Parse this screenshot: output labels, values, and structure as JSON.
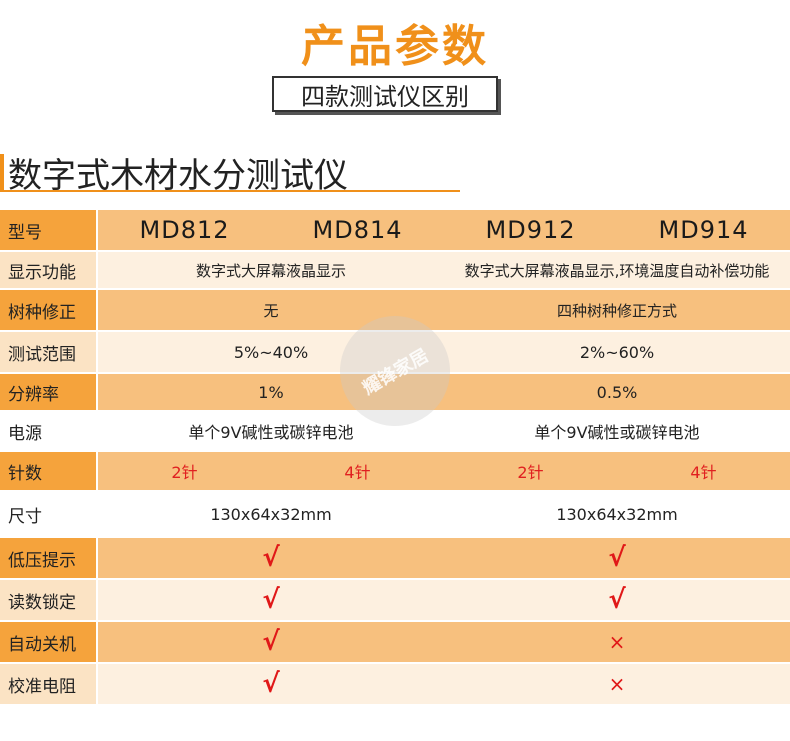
{
  "header": {
    "title": "产品参数",
    "subtitle": "四款测试仪区别",
    "section": "数字式木材水分测试仪"
  },
  "colors": {
    "accent": "#f0901a",
    "label_bg_dark": "#f5a33c",
    "body_bg_dark": "#f7c07e",
    "label_bg_light": "#fbe3c4",
    "body_bg_light": "#fdf0e0",
    "mark_red": "#e01818"
  },
  "table": {
    "model_label": "型号",
    "models": [
      "MD812",
      "MD814",
      "MD912",
      "MD914"
    ],
    "rows": [
      {
        "label": "显示功能",
        "left": "数字式大屏幕液晶显示",
        "right": "数字式大屏幕液晶显示,环境温度自动补偿功能"
      },
      {
        "label": "树种修正",
        "left": "无",
        "right": "四种树种修正方式"
      },
      {
        "label": "测试范围",
        "left": "5%~40%",
        "right": "2%~60%"
      },
      {
        "label": "分辨率",
        "left": "1%",
        "right": "0.5%"
      },
      {
        "label": "电源",
        "left": "单个9V碱性或碳锌电池",
        "right": "单个9V碱性或碳锌电池"
      },
      {
        "label": "针数",
        "pins": [
          "2针",
          "4针",
          "2针",
          "4针"
        ]
      },
      {
        "label": "尺寸",
        "left": "130x64x32mm",
        "right": "130x64x32mm"
      },
      {
        "label": "低压提示",
        "left": "√",
        "right": "√"
      },
      {
        "label": "读数锁定",
        "left": "√",
        "right": "√"
      },
      {
        "label": "自动关机",
        "left": "√",
        "right": "×"
      },
      {
        "label": "校准电阻",
        "left": "√",
        "right": "×"
      }
    ]
  },
  "watermark": "耀锋家居"
}
